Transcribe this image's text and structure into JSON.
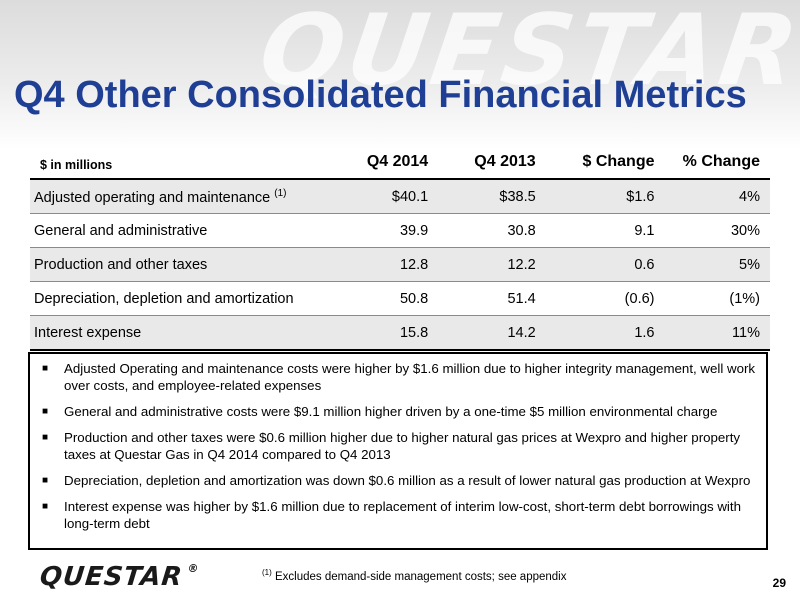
{
  "header": {
    "watermark": "QUESTAR",
    "title": "Q4 Other Consolidated Financial Metrics"
  },
  "table": {
    "units_label": "$ in millions",
    "columns": [
      "Q4 2014",
      "Q4 2013",
      "$ Change",
      "% Change"
    ],
    "rows": [
      {
        "label": "Adjusted operating and maintenance",
        "note": "(1)",
        "values": [
          "$40.1",
          "$38.5",
          "$1.6",
          "4%"
        ]
      },
      {
        "label": "General and administrative",
        "values": [
          "39.9",
          "30.8",
          "9.1",
          "30%"
        ]
      },
      {
        "label": "Production and other taxes",
        "values": [
          "12.8",
          "12.2",
          "0.6",
          "5%"
        ]
      },
      {
        "label": "Depreciation, depletion and amortization",
        "values": [
          "50.8",
          "51.4",
          "(0.6)",
          "(1%)"
        ]
      },
      {
        "label": "Interest expense",
        "values": [
          "15.8",
          "14.2",
          "1.6",
          "11%"
        ]
      }
    ]
  },
  "notes": [
    "Adjusted Operating and maintenance costs were higher by $1.6 million due to higher integrity management, well work over costs, and employee-related expenses",
    "General and administrative costs were $9.1 million higher driven by a one-time $5 million environmental charge",
    "Production and other taxes were $0.6 million higher due to higher natural gas prices at Wexpro and higher property taxes at Questar Gas in Q4 2014 compared to Q4 2013",
    "Depreciation, depletion and amortization was down $0.6 million as a result of lower natural gas production at Wexpro",
    "Interest expense was higher by $1.6 million due to replacement of interim low-cost, short-term debt borrowings with long-term debt"
  ],
  "footer": {
    "logo": "QUESTAR",
    "registered": "®",
    "footnote_marker": "(1)",
    "footnote_text": "Excludes demand-side management costs; see appendix",
    "page_number": "29"
  }
}
